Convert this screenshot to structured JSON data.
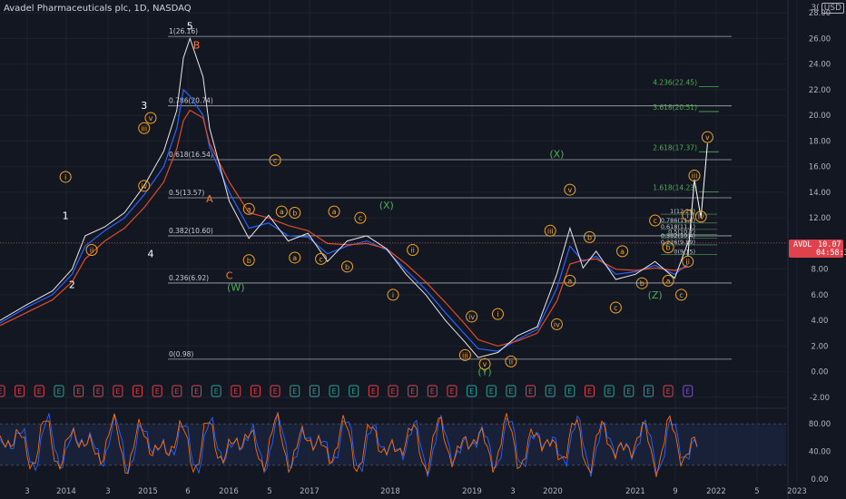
{
  "header": {
    "title": "Avadel Pharmaceuticals plc, 1D, NASDAQ",
    "currency_prefix": "3(",
    "currency": "USD"
  },
  "price_tag": {
    "symbol": "AVDL",
    "price": "10.07",
    "countdown": "04:58:39"
  },
  "chart_data": {
    "type": "line",
    "title": "Avadel Pharmaceuticals plc, 1D, NASDAQ",
    "y_axis": {
      "ticks": [
        "28.00",
        "26.00",
        "24.00",
        "22.00",
        "20.00",
        "18.00",
        "16.00",
        "14.00",
        "12.00",
        "10.00",
        "8.00",
        "6.00",
        "4.00",
        "2.00",
        "0.00",
        "-2.00"
      ],
      "range": [
        -2.5,
        29
      ]
    },
    "x_axis": {
      "ticks": [
        "3",
        "2014",
        "3",
        "2015",
        "6",
        "2016",
        "5",
        "2017",
        "2018",
        "2019",
        "3",
        "2020",
        "2021",
        "9",
        "2022",
        "5",
        "2023"
      ],
      "range": [
        "2013-02",
        "2023-02"
      ]
    },
    "price_series": {
      "name": "AVDL close",
      "x": [
        "2013-02",
        "2013-06",
        "2013-10",
        "2014-01",
        "2014-03",
        "2014-06",
        "2014-09",
        "2014-12",
        "2015-03",
        "2015-05",
        "2015-06",
        "2015-07",
        "2015-09",
        "2015-10",
        "2016-01",
        "2016-04",
        "2016-07",
        "2016-10",
        "2017-01",
        "2017-04",
        "2017-07",
        "2017-10",
        "2018-01",
        "2018-04",
        "2018-07",
        "2018-10",
        "2019-01",
        "2019-03",
        "2019-06",
        "2019-09",
        "2019-12",
        "2020-03",
        "2020-05",
        "2020-07",
        "2020-09",
        "2020-12",
        "2021-03",
        "2021-06",
        "2021-09",
        "2021-11"
      ],
      "y": [
        4.0,
        5.2,
        6.3,
        8.0,
        10.6,
        11.3,
        12.4,
        14.5,
        17.2,
        20.4,
        24.5,
        26.0,
        23.0,
        19.0,
        13.3,
        10.4,
        12.2,
        10.2,
        10.8,
        8.6,
        10.2,
        10.6,
        9.6,
        7.6,
        6.0,
        4.0,
        2.3,
        1.1,
        1.5,
        2.8,
        3.5,
        7.6,
        11.2,
        8.1,
        9.4,
        7.2,
        7.6,
        8.6,
        7.3,
        10.07
      ]
    },
    "moving_averages": [
      {
        "name": "MA fast",
        "color": "#2962ff",
        "y": [
          3.8,
          5.0,
          6.0,
          7.6,
          9.8,
          11.0,
          12.0,
          13.8,
          16.0,
          19.0,
          22.0,
          21.5,
          20.0,
          17.5,
          14.0,
          11.2,
          11.6,
          10.6,
          10.5,
          9.2,
          9.8,
          10.2,
          9.5,
          7.9,
          6.4,
          4.6,
          2.9,
          1.8,
          1.6,
          2.5,
          3.3,
          6.5,
          9.8,
          8.6,
          9.0,
          7.6,
          7.8,
          8.3,
          7.6,
          8.4
        ]
      },
      {
        "name": "MA slow",
        "color": "#e04b2a",
        "y": [
          3.6,
          4.6,
          5.6,
          7.0,
          8.8,
          10.2,
          11.2,
          12.8,
          14.8,
          17.4,
          19.6,
          20.4,
          19.8,
          17.8,
          14.8,
          12.4,
          12.0,
          11.4,
          11.0,
          10.0,
          9.9,
          10.0,
          9.6,
          8.4,
          7.0,
          5.4,
          3.7,
          2.5,
          2.0,
          2.4,
          3.0,
          5.5,
          8.4,
          8.7,
          8.8,
          8.0,
          7.9,
          8.1,
          7.9,
          8.2
        ]
      }
    ],
    "fib_levels": [
      {
        "label": "1(26.16)",
        "value": 26.16
      },
      {
        "label": "0.786(20.74)",
        "value": 20.74
      },
      {
        "label": "0.618(16.54)",
        "value": 16.54
      },
      {
        "label": "0.5(13.57)",
        "value": 13.57
      },
      {
        "label": "0.382(10.60)",
        "value": 10.6
      },
      {
        "label": "0.236(6.92)",
        "value": 6.92
      },
      {
        "label": "0(0.98)",
        "value": 0.98
      }
    ],
    "fib_extensions": [
      {
        "label": "4.236(22.45)",
        "value": 22.45
      },
      {
        "label": "3.618(20.51)",
        "value": 20.51
      },
      {
        "label": "2.618(17.37)",
        "value": 17.37
      },
      {
        "label": "1.618(14.23)",
        "value": 14.23
      }
    ],
    "fib_retrace_small": [
      {
        "label": "1(12.29)",
        "value": 12.29
      },
      {
        "label": "0.786(11.6)",
        "value": 11.6
      },
      {
        "label": "0.618(11.1)",
        "value": 11.1
      },
      {
        "label": "0.5(10.7)",
        "value": 10.7
      },
      {
        "label": "0.382(10.4)",
        "value": 10.4
      },
      {
        "label": "0.236(9.89)",
        "value": 9.89
      },
      {
        "label": "0(9.15)",
        "value": 9.15
      }
    ],
    "wave_labels": [
      {
        "text": "1",
        "x": "2013-12",
        "y": 12.2,
        "color": "#ffffff",
        "circled": false
      },
      {
        "text": "2",
        "x": "2014-01",
        "y": 6.8,
        "color": "#ffffff",
        "circled": false
      },
      {
        "text": "3",
        "x": "2014-12",
        "y": 20.8,
        "color": "#ffffff",
        "circled": false
      },
      {
        "text": "4",
        "x": "2015-01",
        "y": 9.2,
        "color": "#ffffff",
        "circled": false
      },
      {
        "text": "5",
        "x": "2015-07",
        "y": 27.0,
        "color": "#ffffff",
        "circled": false
      },
      {
        "text": "B",
        "x": "2015-08",
        "y": 25.5,
        "color": "#f57c3a",
        "circled": false
      },
      {
        "text": "A",
        "x": "2015-10",
        "y": 13.5,
        "color": "#f57c3a",
        "circled": false
      },
      {
        "text": "C",
        "x": "2016-01",
        "y": 7.5,
        "color": "#f57c3a",
        "circled": false
      },
      {
        "text": "(W)",
        "x": "2016-02",
        "y": 6.6,
        "color": "#4caf50",
        "circled": false
      },
      {
        "text": "(X)",
        "x": "2018-01",
        "y": 13.0,
        "color": "#4caf50",
        "circled": false
      },
      {
        "text": "(Y)",
        "x": "2019-04",
        "y": 0.0,
        "color": "#4caf50",
        "circled": false
      },
      {
        "text": "(X)",
        "x": "2020-03",
        "y": 17.0,
        "color": "#4caf50",
        "circled": false
      },
      {
        "text": "(Z)",
        "x": "2021-06",
        "y": 6.0,
        "color": "#4caf50",
        "circled": false
      },
      {
        "text": "i",
        "x": "2013-12",
        "y": 15.2,
        "color": "#f5a623",
        "circled": true
      },
      {
        "text": "ii",
        "x": "2014-04",
        "y": 9.5,
        "color": "#f5a623",
        "circled": true
      },
      {
        "text": "iii",
        "x": "2014-12",
        "y": 19.0,
        "color": "#f5a623",
        "circled": true
      },
      {
        "text": "iv",
        "x": "2014-12",
        "y": 14.5,
        "color": "#f5a623",
        "circled": true
      },
      {
        "text": "v",
        "x": "2015-01",
        "y": 19.8,
        "color": "#f5a623",
        "circled": true
      },
      {
        "text": "a",
        "x": "2016-04",
        "y": 12.7,
        "color": "#f5a623",
        "circled": true
      },
      {
        "text": "b",
        "x": "2016-04",
        "y": 8.7,
        "color": "#f5a623",
        "circled": true
      },
      {
        "text": "c",
        "x": "2016-08",
        "y": 16.5,
        "color": "#f5a623",
        "circled": true
      },
      {
        "text": "a",
        "x": "2016-09",
        "y": 12.5,
        "color": "#f5a623",
        "circled": true
      },
      {
        "text": "b",
        "x": "2016-11",
        "y": 12.4,
        "color": "#f5a623",
        "circled": true
      },
      {
        "text": "a",
        "x": "2016-11",
        "y": 8.9,
        "color": "#f5a623",
        "circled": true
      },
      {
        "text": "c",
        "x": "2017-03",
        "y": 8.8,
        "color": "#f5a623",
        "circled": true
      },
      {
        "text": "a",
        "x": "2017-05",
        "y": 12.5,
        "color": "#f5a623",
        "circled": true
      },
      {
        "text": "b",
        "x": "2017-07",
        "y": 8.2,
        "color": "#f5a623",
        "circled": true
      },
      {
        "text": "c",
        "x": "2017-09",
        "y": 12.0,
        "color": "#f5a623",
        "circled": true
      },
      {
        "text": "i",
        "x": "2018-02",
        "y": 6.0,
        "color": "#f5a623",
        "circled": true
      },
      {
        "text": "ii",
        "x": "2018-05",
        "y": 9.5,
        "color": "#f5a623",
        "circled": true
      },
      {
        "text": "iii",
        "x": "2019-01",
        "y": 1.3,
        "color": "#f5a623",
        "circled": true
      },
      {
        "text": "iv",
        "x": "2019-02",
        "y": 4.3,
        "color": "#f5a623",
        "circled": true
      },
      {
        "text": "v",
        "x": "2019-04",
        "y": 0.6,
        "color": "#f5a623",
        "circled": true
      },
      {
        "text": "i",
        "x": "2019-06",
        "y": 4.5,
        "color": "#f5a623",
        "circled": true
      },
      {
        "text": "ii",
        "x": "2019-08",
        "y": 0.8,
        "color": "#f5a623",
        "circled": true
      },
      {
        "text": "iii",
        "x": "2020-02",
        "y": 11.0,
        "color": "#f5a623",
        "circled": true
      },
      {
        "text": "iv",
        "x": "2020-03",
        "y": 3.7,
        "color": "#f5a623",
        "circled": true
      },
      {
        "text": "v",
        "x": "2020-05",
        "y": 14.2,
        "color": "#f5a623",
        "circled": true
      },
      {
        "text": "a",
        "x": "2020-05",
        "y": 7.1,
        "color": "#f5a623",
        "circled": true
      },
      {
        "text": "b",
        "x": "2020-08",
        "y": 10.5,
        "color": "#f5a623",
        "circled": true
      },
      {
        "text": "c",
        "x": "2020-12",
        "y": 5.0,
        "color": "#f5a623",
        "circled": true
      },
      {
        "text": "a",
        "x": "2021-01",
        "y": 9.4,
        "color": "#f5a623",
        "circled": true
      },
      {
        "text": "b",
        "x": "2021-04",
        "y": 6.9,
        "color": "#f5a623",
        "circled": true
      },
      {
        "text": "c",
        "x": "2021-06",
        "y": 11.8,
        "color": "#f5a623",
        "circled": true
      },
      {
        "text": "a",
        "x": "2021-08",
        "y": 7.1,
        "color": "#f5a623",
        "circled": true
      },
      {
        "text": "b",
        "x": "2021-08",
        "y": 9.7,
        "color": "#f5a623",
        "circled": true
      },
      {
        "text": "c",
        "x": "2021-10",
        "y": 6.0,
        "color": "#f5a623",
        "circled": true
      },
      {
        "text": "i",
        "x": "2021-11",
        "y": 12.2,
        "color": "#f5a623",
        "circled": true
      },
      {
        "text": "ii",
        "x": "2021-11",
        "y": 8.6,
        "color": "#f5a623",
        "circled": true
      },
      {
        "text": "iii",
        "x": "2021-12",
        "y": 15.3,
        "color": "#f5a623",
        "circled": true
      },
      {
        "text": "iv",
        "x": "2022-01",
        "y": 12.1,
        "color": "#f5a623",
        "circled": true
      },
      {
        "text": "v",
        "x": "2022-02",
        "y": 18.3,
        "color": "#f5a623",
        "circled": true
      }
    ],
    "projection": {
      "x": [
        "2021-11",
        "2021-12",
        "2022-01",
        "2022-02"
      ],
      "y": [
        9.0,
        15.0,
        12.0,
        17.8
      ],
      "color": "#ffffff"
    },
    "earnings_markers": [
      {
        "label": "E",
        "x": "2013-02",
        "kind": "red"
      },
      {
        "label": "E",
        "x": "2013-05",
        "kind": "red"
      },
      {
        "label": "E",
        "x": "2013-08",
        "kind": "red"
      },
      {
        "label": "E",
        "x": "2013-11",
        "kind": "green"
      },
      {
        "label": "E",
        "x": "2014-02",
        "kind": "red"
      },
      {
        "label": "E",
        "x": "2014-05",
        "kind": "red"
      },
      {
        "label": "E",
        "x": "2014-08",
        "kind": "red"
      },
      {
        "label": "E",
        "x": "2014-11",
        "kind": "red"
      },
      {
        "label": "E",
        "x": "2015-02",
        "kind": "red"
      },
      {
        "label": "E",
        "x": "2015-05",
        "kind": "red"
      },
      {
        "label": "E",
        "x": "2015-08",
        "kind": "red"
      },
      {
        "label": "E",
        "x": "2015-11",
        "kind": "green"
      },
      {
        "label": "E",
        "x": "2016-02",
        "kind": "red"
      },
      {
        "label": "E",
        "x": "2016-05",
        "kind": "red"
      },
      {
        "label": "E",
        "x": "2016-08",
        "kind": "red"
      },
      {
        "label": "E",
        "x": "2016-11",
        "kind": "green"
      },
      {
        "label": "E",
        "x": "2017-02",
        "kind": "green"
      },
      {
        "label": "E",
        "x": "2017-05",
        "kind": "green"
      },
      {
        "label": "E",
        "x": "2017-08",
        "kind": "green"
      },
      {
        "label": "E",
        "x": "2017-11",
        "kind": "red"
      },
      {
        "label": "E",
        "x": "2018-02",
        "kind": "red"
      },
      {
        "label": "E",
        "x": "2018-05",
        "kind": "red"
      },
      {
        "label": "E",
        "x": "2018-08",
        "kind": "red"
      },
      {
        "label": "E",
        "x": "2018-11",
        "kind": "red"
      },
      {
        "label": "E",
        "x": "2019-02",
        "kind": "green"
      },
      {
        "label": "E",
        "x": "2019-05",
        "kind": "green"
      },
      {
        "label": "E",
        "x": "2019-08",
        "kind": "green"
      },
      {
        "label": "E",
        "x": "2019-11",
        "kind": "red"
      },
      {
        "label": "E",
        "x": "2020-02",
        "kind": "green"
      },
      {
        "label": "E",
        "x": "2020-05",
        "kind": "green"
      },
      {
        "label": "E",
        "x": "2020-08",
        "kind": "red"
      },
      {
        "label": "E",
        "x": "2020-11",
        "kind": "green"
      },
      {
        "label": "E",
        "x": "2021-02",
        "kind": "green"
      },
      {
        "label": "E",
        "x": "2021-05",
        "kind": "green"
      },
      {
        "label": "E",
        "x": "2021-08",
        "kind": "red"
      },
      {
        "label": "E",
        "x": "2021-11",
        "kind": "future"
      }
    ],
    "stoch_oscillator": {
      "y_ticks": [
        "80.00",
        "40.00",
        "0.00"
      ],
      "range": [
        0,
        100
      ],
      "upper_band": 80,
      "lower_band": 20,
      "colors": {
        "k": "#2962ff",
        "d": "#ff6d00"
      }
    },
    "grid": true
  }
}
